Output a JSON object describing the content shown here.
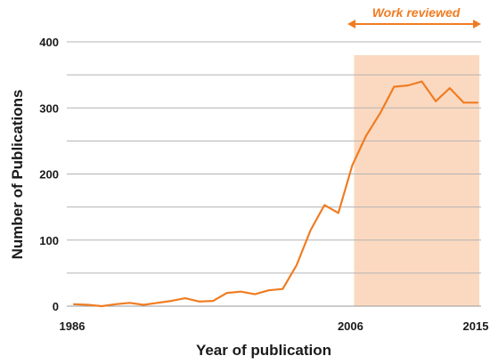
{
  "chart_data": {
    "type": "line",
    "title": "",
    "xlabel": "Year of publication",
    "ylabel": "Number of Publications",
    "xlim": [
      1986,
      2015
    ],
    "ylim": [
      0,
      400
    ],
    "yticks": [
      0,
      100,
      200,
      300,
      400
    ],
    "xtick_labels": [
      "1986",
      "2006",
      "2015"
    ],
    "grid": true,
    "series": [
      {
        "color": "#f07c22",
        "x": [
          1986,
          1987,
          1988,
          1989,
          1990,
          1991,
          1992,
          1993,
          1994,
          1995,
          1996,
          1997,
          1998,
          1999,
          2000,
          2001,
          2002,
          2003,
          2004,
          2005,
          2006,
          2007,
          2008,
          2009,
          2010,
          2011,
          2012,
          2013,
          2014,
          2015
        ],
        "y": [
          3,
          2,
          0,
          3,
          5,
          2,
          5,
          8,
          12,
          7,
          8,
          20,
          22,
          18,
          24,
          26,
          62,
          115,
          153,
          141,
          213,
          258,
          292,
          332,
          334,
          340,
          310,
          330,
          308,
          308
        ]
      }
    ],
    "highlight": {
      "x_start": 2006,
      "x_end": 2015,
      "color": "#fbd9c0",
      "label": "Work reviewed",
      "label_color": "#f07c22"
    }
  }
}
